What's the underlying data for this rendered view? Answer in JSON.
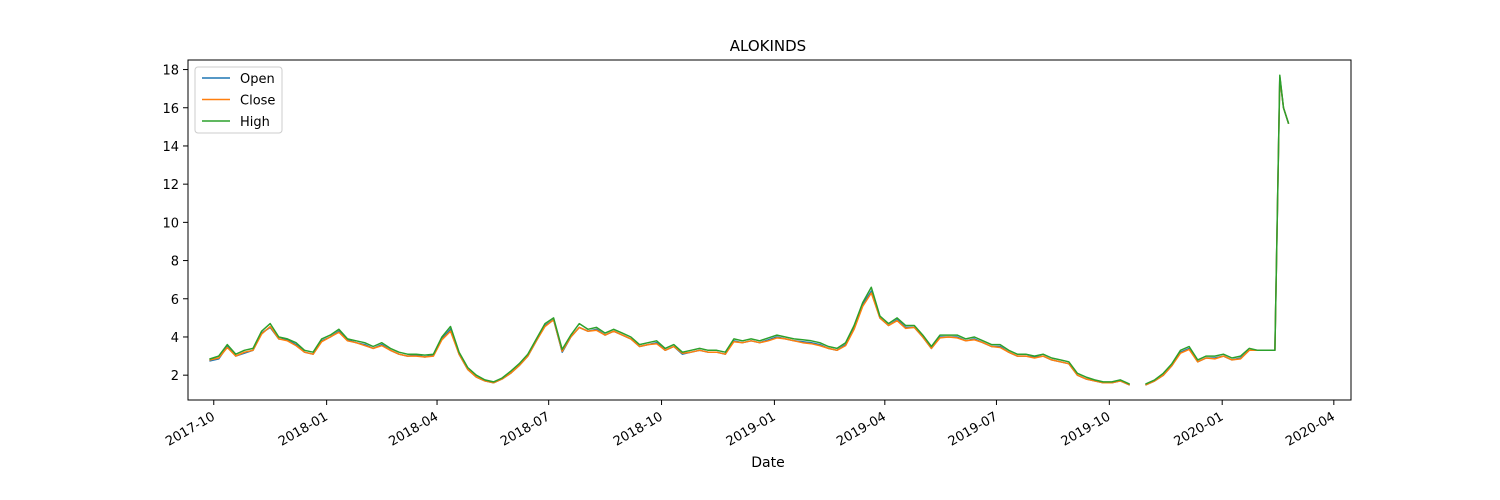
{
  "chart_data": {
    "type": "line",
    "title": "ALOKINDS",
    "xlabel": "Date",
    "ylabel": "",
    "x_ticks": [
      "2017-10",
      "2018-01",
      "2018-04",
      "2018-07",
      "2018-10",
      "2019-01",
      "2019-04",
      "2019-07",
      "2019-10",
      "2020-01",
      "2020-04"
    ],
    "y_ticks": [
      2,
      4,
      6,
      8,
      10,
      12,
      14,
      16,
      18
    ],
    "xlim": [
      "2017-09-10",
      "2020-04-15"
    ],
    "ylim": [
      0.7,
      18.5
    ],
    "grid": false,
    "legend_position": "top-left",
    "x": [
      "2017-09-28",
      "2017-10-05",
      "2017-10-12",
      "2017-10-19",
      "2017-10-26",
      "2017-11-02",
      "2017-11-09",
      "2017-11-16",
      "2017-11-23",
      "2017-11-30",
      "2017-12-07",
      "2017-12-14",
      "2017-12-21",
      "2017-12-28",
      "2018-01-04",
      "2018-01-11",
      "2018-01-18",
      "2018-01-25",
      "2018-02-01",
      "2018-02-08",
      "2018-02-15",
      "2018-02-22",
      "2018-03-01",
      "2018-03-08",
      "2018-03-15",
      "2018-03-22",
      "2018-03-29",
      "2018-04-05",
      "2018-04-12",
      "2018-04-19",
      "2018-04-26",
      "2018-05-03",
      "2018-05-10",
      "2018-05-17",
      "2018-05-24",
      "2018-05-31",
      "2018-06-07",
      "2018-06-14",
      "2018-06-21",
      "2018-06-28",
      "2018-07-05",
      "2018-07-12",
      "2018-07-19",
      "2018-07-26",
      "2018-08-02",
      "2018-08-09",
      "2018-08-16",
      "2018-08-23",
      "2018-08-30",
      "2018-09-06",
      "2018-09-13",
      "2018-09-20",
      "2018-09-27",
      "2018-10-04",
      "2018-10-11",
      "2018-10-18",
      "2018-10-25",
      "2018-11-01",
      "2018-11-08",
      "2018-11-15",
      "2018-11-22",
      "2018-11-29",
      "2018-12-06",
      "2018-12-13",
      "2018-12-20",
      "2018-12-27",
      "2019-01-03",
      "2019-01-10",
      "2019-01-17",
      "2019-01-24",
      "2019-01-31",
      "2019-02-07",
      "2019-02-14",
      "2019-02-21",
      "2019-02-28",
      "2019-03-07",
      "2019-03-14",
      "2019-03-21",
      "2019-03-28",
      "2019-04-04",
      "2019-04-11",
      "2019-04-18",
      "2019-04-25",
      "2019-05-02",
      "2019-05-09",
      "2019-05-16",
      "2019-05-23",
      "2019-05-30",
      "2019-06-06",
      "2019-06-13",
      "2019-06-20",
      "2019-06-27",
      "2019-07-04",
      "2019-07-11",
      "2019-07-18",
      "2019-07-25",
      "2019-08-01",
      "2019-08-08",
      "2019-08-15",
      "2019-08-22",
      "2019-08-29",
      "2019-09-05",
      "2019-09-12",
      "2019-09-19",
      "2019-09-26",
      "2019-10-03",
      "2019-10-10",
      "2019-10-17",
      "2019-10-24",
      "2019-10-31",
      "2019-11-07",
      "2019-11-14",
      "2019-11-21",
      "2019-11-28",
      "2019-12-05",
      "2019-12-12",
      "2019-12-19",
      "2019-12-26",
      "2020-01-02",
      "2020-01-09",
      "2020-01-16",
      "2020-01-23",
      "2020-01-30",
      "2020-02-06",
      "2020-02-13",
      "2020-02-17",
      "2020-02-20",
      "2020-02-24"
    ],
    "series": [
      {
        "name": "Open",
        "color": "#1f77b4",
        "values": [
          2.75,
          2.85,
          3.5,
          3.0,
          3.15,
          3.3,
          4.2,
          4.5,
          3.9,
          3.85,
          3.6,
          3.2,
          3.1,
          3.8,
          4.0,
          4.3,
          3.85,
          3.7,
          3.6,
          3.4,
          3.6,
          3.3,
          3.1,
          3.0,
          3.05,
          2.95,
          3.05,
          3.9,
          4.4,
          3.1,
          2.3,
          1.9,
          1.7,
          1.6,
          1.8,
          2.1,
          2.5,
          3.0,
          3.8,
          4.6,
          4.9,
          3.2,
          4.0,
          4.5,
          4.3,
          4.4,
          4.1,
          4.3,
          4.1,
          3.9,
          3.5,
          3.6,
          3.7,
          3.3,
          3.5,
          3.1,
          3.2,
          3.3,
          3.2,
          3.2,
          3.1,
          3.8,
          3.7,
          3.8,
          3.7,
          3.85,
          4.0,
          3.9,
          3.8,
          3.75,
          3.7,
          3.6,
          3.4,
          3.3,
          3.6,
          4.5,
          5.7,
          6.4,
          5.0,
          4.6,
          4.9,
          4.5,
          4.5,
          4.0,
          3.4,
          4.0,
          4.0,
          4.0,
          3.8,
          3.9,
          3.7,
          3.5,
          3.5,
          3.2,
          3.0,
          3.0,
          2.95,
          3.0,
          2.8,
          2.7,
          2.6,
          2.0,
          1.8,
          1.7,
          1.6,
          1.6,
          1.7,
          1.5,
          null,
          1.5,
          1.7,
          2.0,
          2.5,
          3.2,
          3.4,
          2.7,
          2.9,
          2.9,
          3.0,
          2.8,
          2.9,
          3.3,
          3.3,
          3.3,
          3.3,
          17.6,
          16.0,
          15.2
        ]
      },
      {
        "name": "Close",
        "color": "#ff7f0e",
        "values": [
          2.8,
          2.9,
          3.45,
          3.0,
          3.2,
          3.3,
          4.15,
          4.55,
          3.9,
          3.8,
          3.55,
          3.2,
          3.1,
          3.75,
          4.0,
          4.25,
          3.8,
          3.7,
          3.55,
          3.4,
          3.55,
          3.3,
          3.1,
          3.0,
          3.0,
          2.95,
          3.0,
          3.85,
          4.3,
          3.1,
          2.3,
          1.9,
          1.7,
          1.6,
          1.8,
          2.1,
          2.5,
          3.0,
          3.8,
          4.55,
          4.9,
          3.25,
          4.0,
          4.5,
          4.3,
          4.35,
          4.1,
          4.3,
          4.1,
          3.9,
          3.5,
          3.6,
          3.65,
          3.3,
          3.5,
          3.15,
          3.2,
          3.3,
          3.2,
          3.2,
          3.1,
          3.75,
          3.7,
          3.8,
          3.7,
          3.8,
          3.95,
          3.9,
          3.8,
          3.7,
          3.65,
          3.55,
          3.4,
          3.3,
          3.55,
          4.4,
          5.6,
          6.3,
          5.0,
          4.6,
          4.85,
          4.45,
          4.5,
          4.0,
          3.4,
          3.95,
          4.0,
          3.95,
          3.8,
          3.85,
          3.7,
          3.5,
          3.45,
          3.2,
          3.0,
          3.0,
          2.9,
          3.0,
          2.8,
          2.7,
          2.6,
          2.0,
          1.8,
          1.7,
          1.6,
          1.6,
          1.7,
          1.5,
          null,
          1.5,
          1.7,
          2.0,
          2.5,
          3.15,
          3.35,
          2.7,
          2.9,
          2.85,
          3.0,
          2.8,
          2.85,
          3.3,
          3.3,
          3.3,
          3.3,
          17.6,
          16.0,
          15.2
        ]
      },
      {
        "name": "High",
        "color": "#2ca02c",
        "values": [
          2.85,
          3.0,
          3.6,
          3.1,
          3.3,
          3.4,
          4.3,
          4.7,
          4.0,
          3.9,
          3.7,
          3.3,
          3.2,
          3.9,
          4.1,
          4.4,
          3.9,
          3.8,
          3.7,
          3.5,
          3.7,
          3.4,
          3.2,
          3.1,
          3.1,
          3.05,
          3.1,
          4.0,
          4.55,
          3.2,
          2.4,
          2.0,
          1.75,
          1.65,
          1.85,
          2.2,
          2.6,
          3.1,
          3.9,
          4.7,
          5.0,
          3.35,
          4.1,
          4.7,
          4.4,
          4.5,
          4.2,
          4.4,
          4.2,
          4.0,
          3.6,
          3.7,
          3.8,
          3.4,
          3.6,
          3.2,
          3.3,
          3.4,
          3.3,
          3.3,
          3.2,
          3.9,
          3.8,
          3.9,
          3.8,
          3.95,
          4.1,
          4.0,
          3.9,
          3.85,
          3.8,
          3.7,
          3.5,
          3.4,
          3.7,
          4.6,
          5.8,
          6.6,
          5.1,
          4.7,
          5.0,
          4.6,
          4.6,
          4.1,
          3.5,
          4.1,
          4.1,
          4.1,
          3.9,
          4.0,
          3.8,
          3.6,
          3.6,
          3.3,
          3.1,
          3.1,
          3.0,
          3.1,
          2.9,
          2.8,
          2.7,
          2.1,
          1.9,
          1.75,
          1.65,
          1.65,
          1.75,
          1.55,
          null,
          1.55,
          1.75,
          2.1,
          2.6,
          3.3,
          3.5,
          2.8,
          3.0,
          3.0,
          3.1,
          2.9,
          3.0,
          3.4,
          3.3,
          3.3,
          3.3,
          17.7,
          16.0,
          15.2
        ]
      }
    ]
  }
}
